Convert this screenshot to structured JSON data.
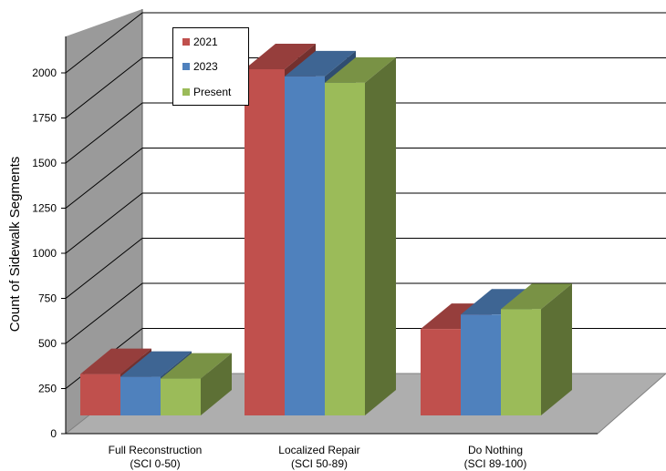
{
  "chart_data": {
    "type": "bar",
    "title": "",
    "xlabel": "",
    "ylabel": "Count of Sidewalk Segments",
    "categories": [
      {
        "line1": "Full Reconstruction",
        "line2": "(SCI 0-50)"
      },
      {
        "line1": "Localized Repair",
        "line2": "(SCI 50-89)"
      },
      {
        "line1": "Do Nothing",
        "line2": "(SCI 89-100)"
      }
    ],
    "series": [
      {
        "name": "2021",
        "color": "#C0504D",
        "values": [
          310,
          2000,
          560
        ]
      },
      {
        "name": "2023",
        "color": "#4F81BD",
        "values": [
          295,
          1960,
          640
        ]
      },
      {
        "name": "Present",
        "color": "#9BBB59",
        "values": [
          285,
          1925,
          670
        ]
      }
    ],
    "ylim": [
      0,
      2000
    ],
    "yticks": [
      0,
      250,
      500,
      750,
      1000,
      1250,
      1500,
      1750,
      2000
    ],
    "grid": true,
    "legend_position": "top-left",
    "style": "3d-clustered-column"
  }
}
